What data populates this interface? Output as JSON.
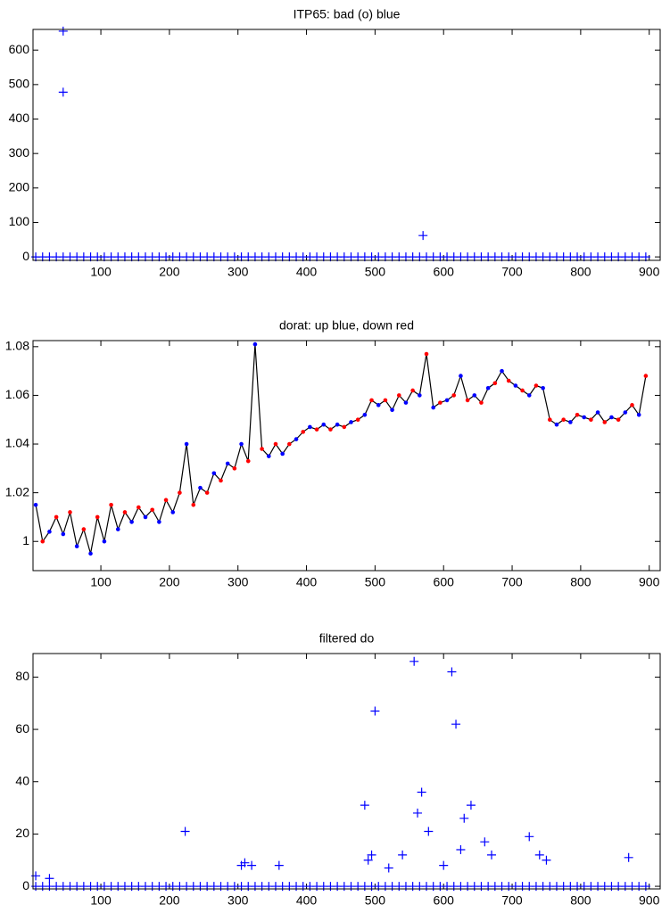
{
  "chart_data": [
    {
      "type": "scatter",
      "title": "ITP65: bad (o) blue",
      "color": "#0000ff",
      "x": [
        45,
        45,
        570,
        5,
        15,
        25,
        35,
        45,
        55,
        65,
        75,
        85,
        95,
        105,
        115,
        125,
        135,
        145,
        155,
        165,
        175,
        185,
        195,
        205,
        215,
        225,
        235,
        245,
        255,
        265,
        275,
        285,
        295,
        305,
        315,
        325,
        335,
        345,
        355,
        365,
        375,
        385,
        395,
        405,
        415,
        425,
        435,
        445,
        455,
        465,
        475,
        485,
        495,
        505,
        515,
        525,
        535,
        545,
        555,
        565,
        575,
        585,
        595,
        605,
        615,
        625,
        635,
        645,
        655,
        665,
        675,
        685,
        695,
        705,
        715,
        725,
        735,
        745,
        755,
        765,
        775,
        785,
        795,
        805,
        815,
        825,
        835,
        845,
        855,
        865,
        875,
        885,
        895
      ],
      "values": [
        655,
        478,
        62,
        0,
        0,
        0,
        0,
        0,
        0,
        0,
        0,
        0,
        0,
        0,
        0,
        0,
        0,
        0,
        0,
        0,
        0,
        0,
        0,
        0,
        0,
        0,
        0,
        0,
        0,
        0,
        0,
        0,
        0,
        0,
        0,
        0,
        0,
        0,
        0,
        0,
        0,
        0,
        0,
        0,
        0,
        0,
        0,
        0,
        0,
        0,
        0,
        0,
        0,
        0,
        0,
        0,
        0,
        0,
        0,
        0,
        0,
        0,
        0,
        0,
        0,
        0,
        0,
        0,
        0,
        0,
        0,
        0,
        0,
        0,
        0,
        0,
        0,
        0,
        0,
        0,
        0,
        0,
        0,
        0,
        0,
        0,
        0,
        0,
        0,
        0,
        0,
        0,
        0
      ],
      "xlim": [
        1,
        916
      ],
      "xticks": [
        100,
        200,
        300,
        400,
        500,
        600,
        700,
        800,
        900
      ],
      "ylim": [
        -10,
        660
      ],
      "yticks": [
        0,
        100,
        200,
        300,
        400,
        500,
        600
      ]
    },
    {
      "type": "line",
      "title": "dorat: up blue, down red",
      "color": "#000000",
      "marker_colors": [
        "#0000ff",
        "#ff0000"
      ],
      "x": [
        5,
        15,
        25,
        35,
        45,
        55,
        65,
        75,
        85,
        95,
        105,
        115,
        125,
        135,
        145,
        155,
        165,
        175,
        185,
        195,
        205,
        215,
        225,
        235,
        245,
        255,
        265,
        275,
        285,
        295,
        305,
        315,
        325,
        335,
        345,
        355,
        365,
        375,
        385,
        395,
        405,
        415,
        425,
        435,
        445,
        455,
        465,
        475,
        485,
        495,
        505,
        515,
        525,
        535,
        545,
        555,
        565,
        575,
        585,
        595,
        605,
        615,
        625,
        635,
        645,
        655,
        665,
        675,
        685,
        695,
        705,
        715,
        725,
        735,
        745,
        755,
        765,
        775,
        785,
        795,
        805,
        815,
        825,
        835,
        845,
        855,
        865,
        875,
        885,
        895
      ],
      "values": [
        1.015,
        1.0,
        1.004,
        1.01,
        1.003,
        1.012,
        0.998,
        1.005,
        0.995,
        1.01,
        1.0,
        1.015,
        1.005,
        1.012,
        1.008,
        1.014,
        1.01,
        1.013,
        1.008,
        1.017,
        1.012,
        1.02,
        1.04,
        1.015,
        1.022,
        1.02,
        1.028,
        1.025,
        1.032,
        1.03,
        1.04,
        1.033,
        1.081,
        1.038,
        1.035,
        1.04,
        1.036,
        1.04,
        1.042,
        1.045,
        1.047,
        1.046,
        1.048,
        1.046,
        1.048,
        1.047,
        1.049,
        1.05,
        1.052,
        1.058,
        1.056,
        1.058,
        1.054,
        1.06,
        1.057,
        1.062,
        1.06,
        1.077,
        1.055,
        1.057,
        1.058,
        1.06,
        1.068,
        1.058,
        1.06,
        1.057,
        1.063,
        1.065,
        1.07,
        1.066,
        1.064,
        1.062,
        1.06,
        1.064,
        1.063,
        1.05,
        1.048,
        1.05,
        1.049,
        1.052,
        1.051,
        1.05,
        1.053,
        1.049,
        1.051,
        1.05,
        1.053,
        1.056,
        1.052,
        1.068
      ],
      "xlim": [
        1,
        916
      ],
      "xticks": [
        100,
        200,
        300,
        400,
        500,
        600,
        700,
        800,
        900
      ],
      "ylim": [
        0.988,
        1.0825
      ],
      "yticks": [
        1,
        1.02,
        1.04,
        1.06,
        1.08
      ]
    },
    {
      "type": "scatter",
      "title": "filtered do",
      "color": "#0000ff",
      "x": [
        223,
        485,
        500,
        557,
        562,
        568,
        578,
        612,
        618,
        630,
        640,
        660,
        725,
        870,
        305,
        310,
        320,
        360,
        490,
        495,
        520,
        540,
        600,
        625,
        670,
        740,
        750,
        5,
        25,
        5,
        15,
        25,
        35,
        45,
        55,
        65,
        75,
        85,
        95,
        105,
        115,
        125,
        135,
        145,
        155,
        165,
        175,
        185,
        195,
        205,
        215,
        225,
        235,
        245,
        255,
        265,
        275,
        285,
        295,
        305,
        315,
        325,
        335,
        345,
        355,
        365,
        375,
        385,
        395,
        405,
        415,
        425,
        435,
        445,
        455,
        465,
        475,
        485,
        495,
        505,
        515,
        525,
        535,
        545,
        555,
        565,
        575,
        585,
        595,
        605,
        615,
        625,
        635,
        645,
        655,
        665,
        675,
        685,
        695,
        705,
        715,
        725,
        735,
        745,
        755,
        765,
        775,
        785,
        795,
        805,
        815,
        825,
        835,
        845,
        855,
        865,
        875,
        885,
        895
      ],
      "values": [
        21,
        31,
        67,
        86,
        28,
        36,
        21,
        82,
        62,
        26,
        31,
        17,
        19,
        11,
        8,
        9,
        8,
        8,
        10,
        12,
        7,
        12,
        8,
        14,
        12,
        12,
        10,
        4,
        3,
        0,
        0,
        0,
        0,
        0,
        0,
        0,
        0,
        0,
        0,
        0,
        0,
        0,
        0,
        0,
        0,
        0,
        0,
        0,
        0,
        0,
        0,
        0,
        0,
        0,
        0,
        0,
        0,
        0,
        0,
        0,
        0,
        0,
        0,
        0,
        0,
        0,
        0,
        0,
        0,
        0,
        0,
        0,
        0,
        0,
        0,
        0,
        0,
        0,
        0,
        0,
        0,
        0,
        0,
        0,
        0,
        0,
        0,
        0,
        0,
        0,
        0,
        0,
        0,
        0,
        0,
        0,
        0,
        0,
        0,
        0,
        0,
        0,
        0,
        0,
        0,
        0,
        0,
        0,
        0,
        0,
        0,
        0,
        0,
        0,
        0,
        0,
        0,
        0,
        0
      ],
      "xlim": [
        1,
        916
      ],
      "xticks": [
        100,
        200,
        300,
        400,
        500,
        600,
        700,
        800,
        900
      ],
      "ylim": [
        -1,
        89
      ],
      "yticks": [
        0,
        20,
        40,
        60,
        80
      ]
    }
  ]
}
